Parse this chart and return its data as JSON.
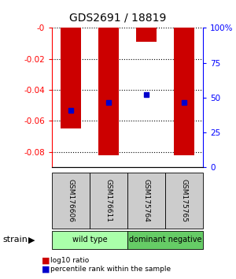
{
  "title": "GDS2691 / 18819",
  "samples": [
    "GSM176606",
    "GSM176611",
    "GSM175764",
    "GSM175765"
  ],
  "bar_values": [
    -0.065,
    -0.082,
    -0.009,
    -0.082
  ],
  "percentile_values": [
    -0.053,
    -0.048,
    -0.043,
    -0.048
  ],
  "bar_color": "#cc0000",
  "pct_color": "#0000cc",
  "ylim_left": [
    -0.09,
    0.0
  ],
  "ylim_right": [
    0,
    100
  ],
  "yticks_left": [
    0,
    -0.02,
    -0.04,
    -0.06,
    -0.08
  ],
  "yticks_right": [
    0,
    25,
    50,
    75,
    100
  ],
  "groups": [
    {
      "label": "wild type",
      "indices": [
        0,
        1
      ],
      "color": "#aaffaa"
    },
    {
      "label": "dominant negative",
      "indices": [
        2,
        3
      ],
      "color": "#66cc66"
    }
  ],
  "bar_width": 0.55,
  "legend_red_label": "log10 ratio",
  "legend_blue_label": "percentile rank within the sample",
  "strain_label": "strain",
  "background_color": "#ffffff"
}
